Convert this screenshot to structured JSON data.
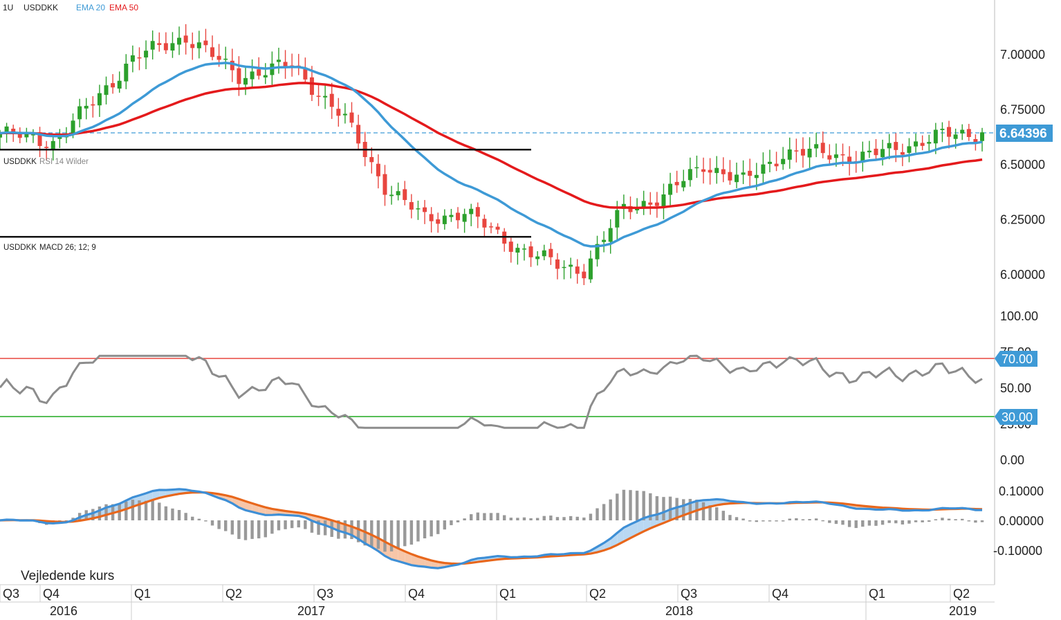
{
  "header": {
    "interval": "1U",
    "symbol": "USDDKK",
    "ema20_label": "EMA 20",
    "ema50_label": "EMA 50"
  },
  "rsi_header": {
    "symbol": "USDDKK",
    "label": "RSI 14 Wilder"
  },
  "macd_header": {
    "symbol": "USDDKK",
    "label": "MACD 26; 12; 9"
  },
  "footer_note": "Vejledende kurs",
  "current_price_label": "6.64396",
  "colors": {
    "up": "#2ca02c",
    "down": "#e8463f",
    "ema20": "#3e9ad6",
    "ema50": "#e41a1c",
    "rsi": "#8c8c8c",
    "rsi_upper": "#e8463f",
    "rsi_lower": "#1fa81f",
    "macd": "#3e8fd6",
    "signal": "#e8671c",
    "hist": "#999999",
    "fill_pos": "#b9d8f2",
    "fill_neg": "#f7c6a8",
    "price_tag": "#3e9ad6"
  },
  "x_axis": {
    "quarters": [
      "Q3",
      "Q4",
      "Q1",
      "Q2",
      "Q3",
      "Q4",
      "Q1",
      "Q2",
      "Q3",
      "Q4",
      "Q1",
      "Q2"
    ],
    "years": [
      "2016",
      "2017",
      "2018",
      "2019"
    ]
  },
  "price_axis": {
    "ticks": [
      "7.00000",
      "6.75000",
      "6.50000",
      "6.25000",
      "6.00000"
    ]
  },
  "rsi_axis": {
    "ticks": [
      "100.00",
      "75.00",
      "50.00",
      "25.00",
      "0.00"
    ],
    "upper_tag": "70.00",
    "lower_tag": "30.00"
  },
  "macd_axis": {
    "ticks": [
      "0.10000",
      "0.00000",
      "-0.10000"
    ]
  },
  "chart_data": {
    "type": "candlestick",
    "timeframe": "weekly",
    "symbol": "USDDKK",
    "current_price": 6.64396,
    "price_range": [
      5.93,
      7.2
    ],
    "x_range": [
      "Q3 2016",
      "Q2 2019"
    ],
    "ema20_end": 6.6,
    "ema50_end": 6.52,
    "rsi": {
      "period": 14,
      "method": "Wilder",
      "upper": 70,
      "lower": 30,
      "range": [
        0,
        100
      ],
      "last": 56
    },
    "macd": {
      "params": [
        26,
        12,
        9
      ],
      "range": [
        -0.17,
        0.2
      ],
      "last_macd": 0.045,
      "last_signal": 0.045
    },
    "close_path_anchors": [
      {
        "t": "Q3 2016",
        "close": 6.64
      },
      {
        "t": "Q4 2016",
        "close": 6.93
      },
      {
        "t": "Q1 2017",
        "close": 7.05
      },
      {
        "t": "Q2 2017",
        "close": 6.94
      },
      {
        "t": "Q3 2017",
        "close": 6.42
      },
      {
        "t": "Q4 2017",
        "close": 6.3
      },
      {
        "t": "Q1 2018",
        "close": 6.04
      },
      {
        "t": "Q2 2018",
        "close": 6.2
      },
      {
        "t": "Q3 2018",
        "close": 6.4
      },
      {
        "t": "Q4 2018",
        "close": 6.55
      },
      {
        "t": "Q1 2019",
        "close": 6.58
      },
      {
        "t": "Q2 2019",
        "close": 6.64
      }
    ]
  }
}
